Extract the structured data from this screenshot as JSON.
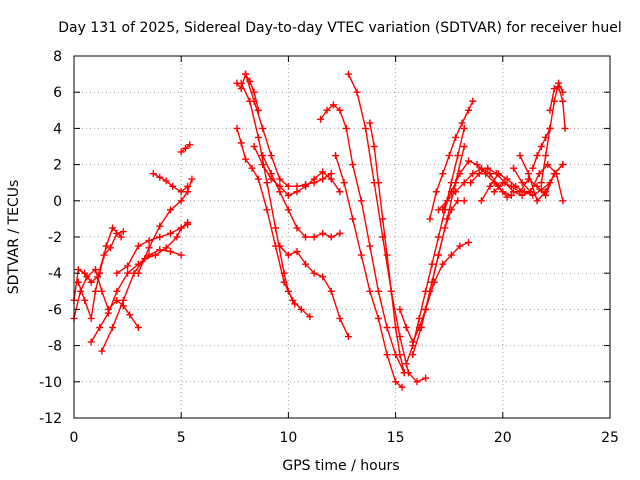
{
  "chart_data": {
    "type": "scatter",
    "title": "Day 131 of 2025, Sidereal Day-to-day VTEC variation (SDTVAR) for receiver huel",
    "xlabel": "GPS time / hours",
    "ylabel": "SDTVAR / TECUs",
    "xlim": [
      0,
      25
    ],
    "ylim": [
      -12,
      8
    ],
    "xticks": [
      0,
      5,
      10,
      15,
      20,
      25
    ],
    "yticks": [
      -12,
      -10,
      -8,
      -6,
      -4,
      -2,
      0,
      2,
      4,
      6,
      8
    ],
    "grid": true,
    "marker": "plus",
    "color": "#ff0000",
    "series": [
      {
        "x": [
          0.0,
          0.3,
          0.6,
          1.0,
          1.3,
          1.6,
          2.0,
          2.3,
          2.6,
          3.0
        ],
        "y": [
          -6.5,
          -5.0,
          -4.2,
          -3.8,
          -5.0,
          -6.0,
          -5.5,
          -5.8,
          -6.3,
          -7.0
        ]
      },
      {
        "x": [
          0.0,
          0.2,
          0.5,
          0.8,
          1.1,
          1.4,
          1.7,
          2.0,
          2.3
        ],
        "y": [
          -5.5,
          -3.8,
          -4.0,
          -4.5,
          -4.2,
          -3.0,
          -2.6,
          -1.8,
          -1.7
        ]
      },
      {
        "x": [
          0.2,
          0.5,
          0.8,
          1.0,
          1.2,
          1.5,
          1.8,
          2.2
        ],
        "y": [
          -4.5,
          -5.5,
          -6.5,
          -5.0,
          -4.0,
          -2.5,
          -1.5,
          -2.0
        ]
      },
      {
        "x": [
          0.8,
          1.2,
          1.6,
          2.0,
          2.5,
          3.0,
          3.5,
          4.0,
          4.5,
          5.0
        ],
        "y": [
          -7.8,
          -7.0,
          -6.2,
          -5.0,
          -4.0,
          -3.5,
          -3.0,
          -2.7,
          -2.8,
          -3.0
        ]
      },
      {
        "x": [
          1.3,
          1.8,
          2.3,
          2.8,
          3.3,
          3.8,
          4.3,
          4.8,
          5.0,
          5.3
        ],
        "y": [
          -8.3,
          -7.0,
          -5.5,
          -4.0,
          -3.2,
          -3.0,
          -2.6,
          -2.0,
          -1.5,
          -1.2
        ]
      },
      {
        "x": [
          2.0,
          2.5,
          3.0,
          3.5,
          4.0,
          4.5,
          5.0,
          5.3
        ],
        "y": [
          -4.0,
          -3.6,
          -2.5,
          -2.2,
          -2.0,
          -1.8,
          -1.5,
          -1.3
        ]
      },
      {
        "x": [
          3.0,
          3.5,
          4.0,
          4.5,
          5.0,
          5.3,
          5.5
        ],
        "y": [
          -4.0,
          -2.6,
          -1.4,
          -0.5,
          0.0,
          0.5,
          1.2
        ]
      },
      {
        "x": [
          3.7,
          4.0,
          4.3,
          4.6,
          5.0,
          5.3
        ],
        "y": [
          1.5,
          1.3,
          1.1,
          0.8,
          0.5,
          0.8
        ]
      },
      {
        "x": [
          5.0,
          5.2,
          5.4
        ],
        "y": [
          2.7,
          2.9,
          3.1
        ]
      },
      {
        "x": [
          7.6,
          7.8,
          8.0,
          8.2,
          8.4,
          8.6
        ],
        "y": [
          6.5,
          6.2,
          7.0,
          6.6,
          6.0,
          5.0
        ]
      },
      {
        "x": [
          7.6,
          7.8,
          8.0,
          8.3,
          8.6,
          9.0,
          9.4,
          9.8,
          10.2,
          10.6,
          11.0
        ],
        "y": [
          4.0,
          3.2,
          2.3,
          1.8,
          1.2,
          -0.5,
          -2.5,
          -4.5,
          -5.5,
          -6.0,
          -6.4
        ]
      },
      {
        "x": [
          7.8,
          8.2,
          8.6,
          9.0,
          9.4,
          9.8,
          10.0,
          10.3
        ],
        "y": [
          6.5,
          5.5,
          3.5,
          1.0,
          -1.5,
          -4.0,
          -5.0,
          -5.7
        ]
      },
      {
        "x": [
          8.0,
          8.4,
          8.8,
          9.2,
          9.6,
          10.0,
          10.4,
          10.8,
          11.2,
          11.6,
          12.0
        ],
        "y": [
          7.0,
          5.5,
          4.0,
          2.5,
          1.2,
          0.8,
          0.8,
          0.9,
          1.0,
          1.2,
          1.5
        ]
      },
      {
        "x": [
          8.4,
          8.8,
          9.2,
          9.6,
          10.0,
          10.4,
          10.8,
          11.2,
          11.6,
          12.0,
          12.4
        ],
        "y": [
          3.0,
          2.0,
          1.2,
          0.8,
          0.3,
          0.5,
          0.8,
          1.2,
          1.6,
          1.2,
          0.5
        ]
      },
      {
        "x": [
          8.8,
          9.2,
          9.6,
          10.0,
          10.4,
          10.8,
          11.2,
          11.6,
          12.0,
          12.4
        ],
        "y": [
          2.5,
          1.5,
          0.5,
          -0.5,
          -1.5,
          -2.0,
          -2.0,
          -1.8,
          -2.0,
          -1.8
        ]
      },
      {
        "x": [
          9.6,
          10.0,
          10.4,
          10.8,
          11.2,
          11.6,
          12.0,
          12.4,
          12.8
        ],
        "y": [
          -2.5,
          -3.0,
          -2.8,
          -3.5,
          -4.0,
          -4.2,
          -5.0,
          -6.5,
          -7.5
        ]
      },
      {
        "x": [
          11.5,
          11.8,
          12.1,
          12.4,
          12.7,
          13.0,
          13.4,
          13.8,
          14.2,
          14.6,
          15.0,
          15.4
        ],
        "y": [
          4.5,
          5.0,
          5.3,
          5.0,
          4.0,
          2.0,
          0.0,
          -2.5,
          -5.0,
          -7.0,
          -8.5,
          -9.5
        ]
      },
      {
        "x": [
          12.8,
          13.2,
          13.6,
          14.0,
          14.4,
          14.8,
          15.2,
          15.6,
          16.0,
          16.4
        ],
        "y": [
          7.0,
          6.0,
          4.0,
          1.0,
          -2.0,
          -5.0,
          -7.5,
          -9.5,
          -10.0,
          -9.8
        ]
      },
      {
        "x": [
          13.8,
          14.0,
          14.2,
          14.4,
          14.6,
          14.8,
          15.0,
          15.2,
          15.4
        ],
        "y": [
          4.3,
          3.0,
          1.0,
          -1.0,
          -3.0,
          -5.0,
          -7.0,
          -8.5,
          -9.5
        ]
      },
      {
        "x": [
          12.2,
          12.6,
          13.0,
          13.4,
          13.8,
          14.2,
          14.6,
          15.0,
          15.3
        ],
        "y": [
          2.5,
          1.0,
          -1.0,
          -3.0,
          -5.0,
          -6.5,
          -8.5,
          -10.0,
          -10.3
        ]
      },
      {
        "x": [
          15.2,
          15.5,
          15.8,
          16.1,
          16.4,
          16.7,
          17.0,
          17.3,
          17.6,
          17.9,
          18.2
        ],
        "y": [
          -6.0,
          -7.0,
          -7.8,
          -7.0,
          -6.0,
          -4.5,
          -3.0,
          -1.5,
          -0.5,
          0.0,
          0.0
        ]
      },
      {
        "x": [
          15.5,
          15.8,
          16.1,
          16.4,
          16.7,
          17.0,
          17.3,
          17.6,
          17.9,
          18.2
        ],
        "y": [
          -9.0,
          -8.0,
          -6.5,
          -5.0,
          -3.5,
          -2.0,
          -0.5,
          1.0,
          2.5,
          4.0
        ]
      },
      {
        "x": [
          15.8,
          16.2,
          16.6,
          17.0,
          17.4,
          17.8,
          18.2
        ],
        "y": [
          -8.5,
          -7.0,
          -5.0,
          -3.0,
          -1.0,
          1.0,
          3.0
        ]
      },
      {
        "x": [
          16.4,
          16.8,
          17.2,
          17.6,
          18.0,
          18.4
        ],
        "y": [
          -6.0,
          -4.5,
          -3.5,
          -3.0,
          -2.5,
          -2.3
        ]
      },
      {
        "x": [
          16.6,
          16.9,
          17.2,
          17.5,
          17.8,
          18.1,
          18.4,
          18.6
        ],
        "y": [
          -1.0,
          0.5,
          1.5,
          2.5,
          3.5,
          4.3,
          5.0,
          5.5
        ]
      },
      {
        "x": [
          17.0,
          17.4,
          17.8,
          18.2,
          18.6,
          19.0,
          19.4,
          19.8,
          20.2
        ],
        "y": [
          -0.5,
          0.0,
          0.5,
          1.0,
          1.5,
          1.8,
          1.5,
          0.8,
          0.2
        ]
      },
      {
        "x": [
          17.2,
          17.6,
          18.0,
          18.4,
          18.8,
          19.2,
          19.6,
          20.0,
          20.4
        ],
        "y": [
          -0.5,
          0.5,
          1.5,
          2.2,
          2.0,
          1.5,
          1.0,
          0.5,
          0.3
        ]
      },
      {
        "x": [
          18.5,
          18.9,
          19.3,
          19.7,
          20.1,
          20.5,
          20.9,
          21.3
        ],
        "y": [
          1.0,
          1.5,
          1.8,
          1.5,
          1.0,
          0.5,
          0.3,
          0.5
        ]
      },
      {
        "x": [
          19.0,
          19.4,
          19.8,
          20.2,
          20.6,
          21.0,
          21.4,
          21.8,
          22.2
        ],
        "y": [
          0.0,
          0.8,
          1.5,
          1.2,
          0.8,
          0.5,
          0.3,
          0.6,
          1.0
        ]
      },
      {
        "x": [
          19.6,
          20.0,
          20.4,
          20.8,
          21.2,
          21.6,
          22.0,
          22.4,
          22.8
        ],
        "y": [
          0.5,
          1.0,
          0.8,
          0.5,
          1.2,
          0.8,
          0.3,
          1.5,
          2.0
        ]
      },
      {
        "x": [
          20.5,
          20.9,
          21.3,
          21.7,
          22.1,
          22.5,
          22.8
        ],
        "y": [
          1.8,
          1.0,
          0.5,
          1.5,
          2.0,
          1.5,
          0.0
        ]
      },
      {
        "x": [
          20.8,
          21.2,
          21.6,
          22.0,
          22.4,
          22.8
        ],
        "y": [
          2.5,
          1.5,
          0.0,
          0.5,
          1.5,
          2.0
        ]
      },
      {
        "x": [
          21.4,
          21.6,
          21.8,
          22.0,
          22.2
        ],
        "y": [
          1.8,
          2.5,
          3.0,
          3.5,
          4.0
        ]
      },
      {
        "x": [
          21.8,
          22.0,
          22.2,
          22.4,
          22.6,
          22.8
        ],
        "y": [
          1.0,
          2.5,
          4.0,
          5.5,
          6.5,
          6.0
        ]
      },
      {
        "x": [
          22.2,
          22.4,
          22.6,
          22.8,
          22.9
        ],
        "y": [
          5.0,
          6.2,
          6.3,
          5.5,
          4.0
        ]
      }
    ]
  }
}
